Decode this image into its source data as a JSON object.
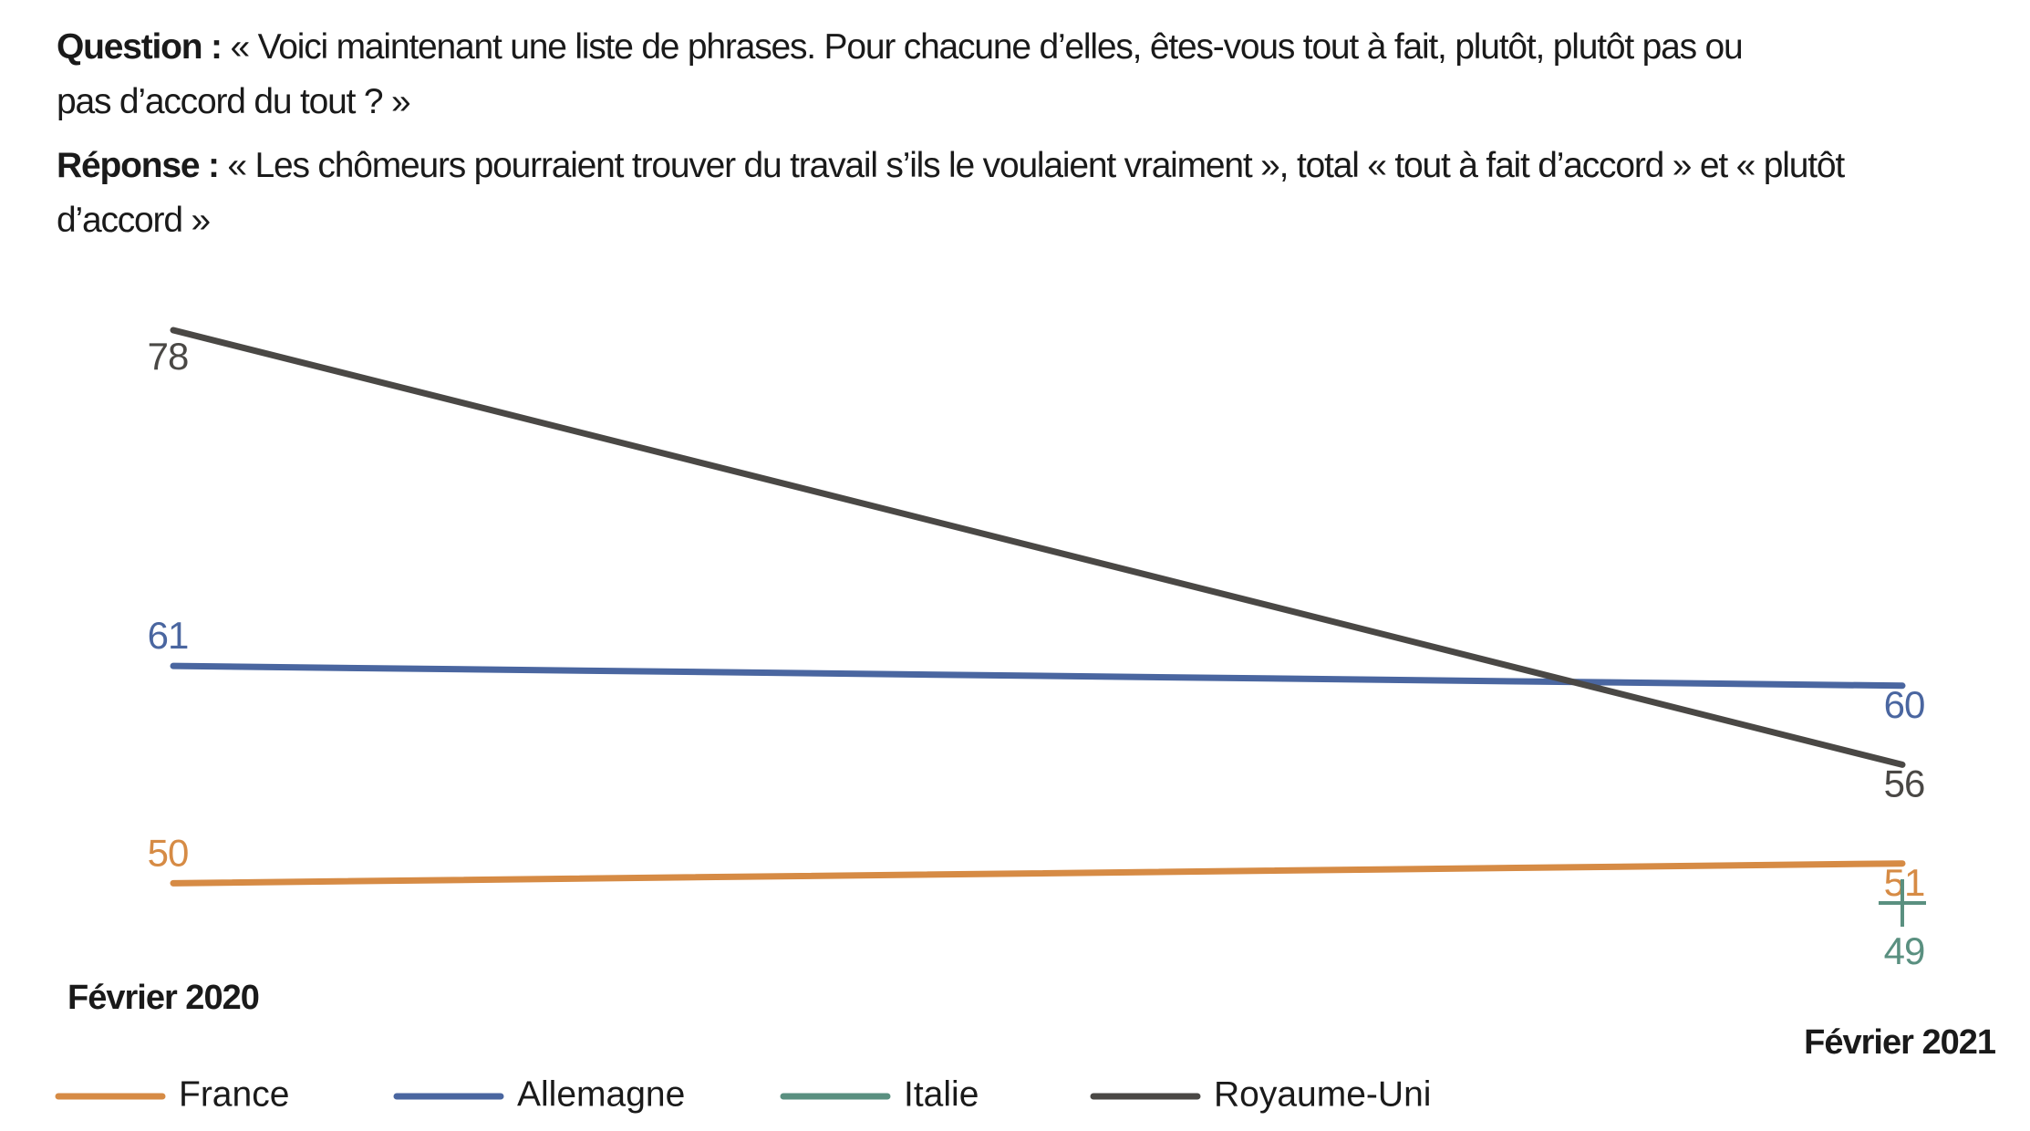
{
  "chart_data": {
    "type": "line",
    "question_label": "Question :",
    "question": "« Voici maintenant une liste de phrases. Pour chacune d’elles, êtes-vous tout à fait, plutôt, plutôt pas ou pas d’accord du tout ? »",
    "answer_label": "Réponse :",
    "answer": "« Les chômeurs pourraient trouver du travail s’ils le voulaient vraiment », total « tout à fait d’accord » et « plutôt d’accord »",
    "categories": [
      "Février 2020",
      "Février 2021"
    ],
    "series": [
      {
        "name": "France",
        "color": "#d68b45",
        "values": [
          50,
          51
        ]
      },
      {
        "name": "Allemagne",
        "color": "#4a66a0",
        "values": [
          61,
          60
        ]
      },
      {
        "name": "Italie",
        "color": "#5a9080",
        "values": [
          null,
          49
        ]
      },
      {
        "name": "Royaume-Uni",
        "color": "#4a4845",
        "values": [
          78,
          56
        ]
      }
    ]
  }
}
